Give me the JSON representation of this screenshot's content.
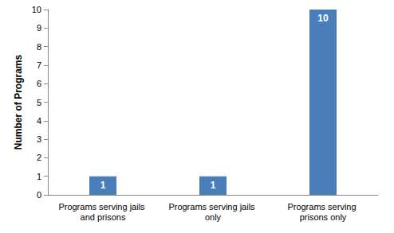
{
  "chart_data": {
    "type": "bar",
    "y_label": "Number of Programs",
    "categories": [
      "Programs serving jails and prisons",
      "Programs serving jails only",
      "Programs serving prisons only"
    ],
    "values": [
      1,
      1,
      10
    ],
    "color": "#4a7ebb",
    "ylim": [
      0,
      10
    ],
    "yticks": [
      0,
      1,
      2,
      3,
      4,
      5,
      6,
      7,
      8,
      9,
      10
    ],
    "grid": false,
    "data_labels": true
  }
}
